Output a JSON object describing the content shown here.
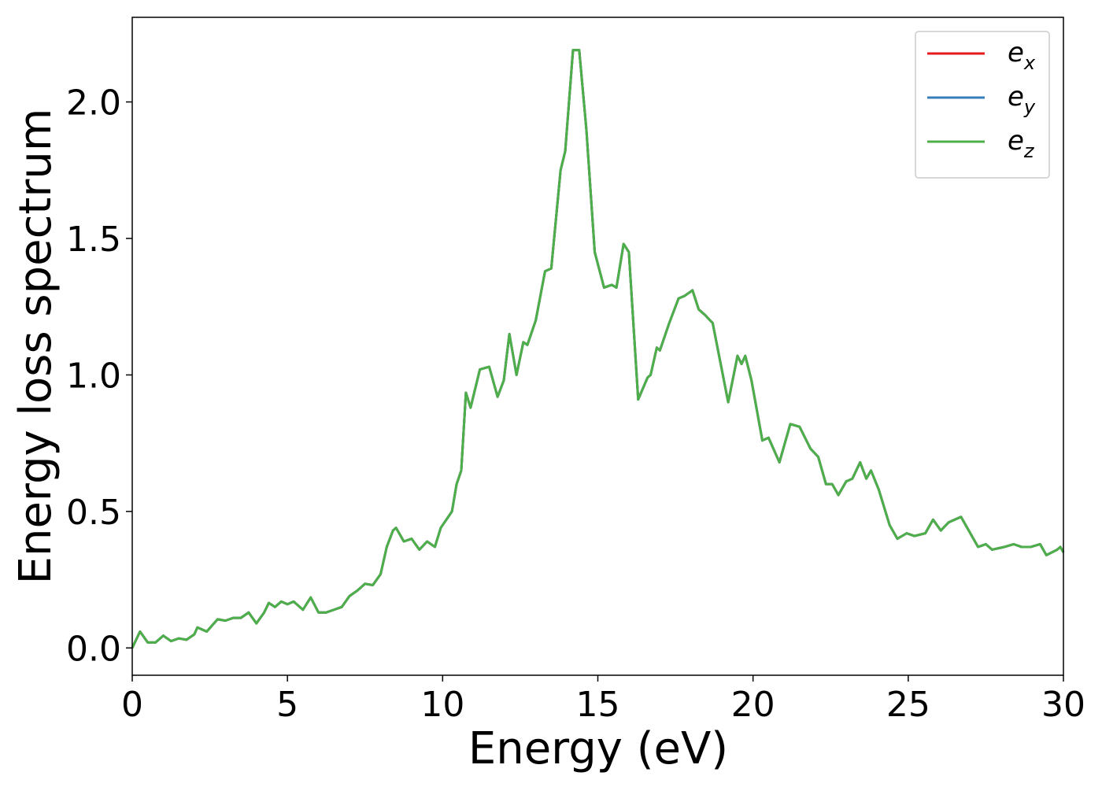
{
  "chart_data": {
    "type": "line",
    "xlabel": "Energy (eV)",
    "ylabel": "Energy loss spectrum",
    "xlim": [
      0,
      30
    ],
    "xticks": [
      0,
      5,
      10,
      15,
      20,
      25,
      30
    ],
    "ylim": [
      -0.1,
      2.31
    ],
    "yticks": [
      {
        "value": 0,
        "label": "0.0"
      },
      0.5,
      {
        "value": 1,
        "label": "1.0"
      },
      1.5,
      {
        "value": 2,
        "label": "2.0"
      }
    ],
    "legend": "upper right",
    "x": [
      0,
      0.25,
      0.5,
      0.75,
      1.0,
      1.25,
      1.5,
      1.75,
      2.0,
      2.1,
      2.4,
      2.75,
      3.0,
      3.25,
      3.5,
      3.75,
      4.0,
      4.25,
      4.4,
      4.6,
      4.8,
      5.0,
      5.2,
      5.5,
      5.75,
      6.0,
      6.25,
      6.5,
      6.75,
      7.0,
      7.25,
      7.5,
      7.75,
      8.0,
      8.2,
      8.4,
      8.5,
      8.75,
      9.0,
      9.25,
      9.5,
      9.75,
      9.94,
      10.3,
      10.45,
      10.6,
      10.75,
      10.9,
      11.2,
      11.5,
      11.77,
      11.97,
      12.15,
      12.38,
      12.6,
      12.73,
      13.0,
      13.3,
      13.5,
      13.8,
      13.95,
      14.2,
      14.4,
      14.63,
      14.9,
      15.2,
      15.45,
      15.6,
      15.83,
      16.0,
      16.3,
      16.6,
      16.7,
      16.9,
      17.0,
      17.3,
      17.6,
      17.8,
      18.05,
      18.25,
      18.45,
      18.7,
      19.2,
      19.5,
      19.63,
      19.75,
      19.95,
      20.3,
      20.5,
      20.85,
      21.2,
      21.5,
      21.85,
      22.1,
      22.35,
      22.55,
      22.75,
      23.0,
      23.2,
      23.45,
      23.65,
      23.8,
      24.05,
      24.4,
      24.65,
      24.95,
      25.2,
      25.55,
      25.8,
      26.05,
      26.3,
      26.7,
      26.95,
      27.25,
      27.5,
      27.7,
      28.1,
      28.4,
      28.65,
      28.95,
      29.25,
      29.45,
      29.8,
      29.9,
      30
    ],
    "series": [
      {
        "name": "e_x",
        "color": "#e41a1c",
        "values": [
          0.0,
          0.06,
          0.02,
          0.02,
          0.045,
          0.025,
          0.035,
          0.03,
          0.05,
          0.075,
          0.06,
          0.105,
          0.1,
          0.11,
          0.11,
          0.13,
          0.09,
          0.13,
          0.165,
          0.15,
          0.17,
          0.16,
          0.17,
          0.14,
          0.185,
          0.13,
          0.13,
          0.14,
          0.15,
          0.19,
          0.21,
          0.235,
          0.23,
          0.27,
          0.37,
          0.43,
          0.44,
          0.39,
          0.4,
          0.36,
          0.39,
          0.37,
          0.44,
          0.5,
          0.6,
          0.65,
          0.935,
          0.88,
          1.02,
          1.03,
          0.92,
          0.98,
          1.15,
          1.0,
          1.12,
          1.11,
          1.2,
          1.38,
          1.39,
          1.75,
          1.82,
          2.19,
          2.19,
          1.9,
          1.45,
          1.32,
          1.33,
          1.32,
          1.48,
          1.45,
          0.91,
          0.99,
          1.0,
          1.1,
          1.09,
          1.19,
          1.28,
          1.29,
          1.31,
          1.24,
          1.22,
          1.19,
          0.9,
          1.07,
          1.04,
          1.07,
          0.98,
          0.76,
          0.77,
          0.68,
          0.82,
          0.81,
          0.73,
          0.7,
          0.6,
          0.6,
          0.56,
          0.61,
          0.62,
          0.68,
          0.62,
          0.65,
          0.58,
          0.45,
          0.4,
          0.42,
          0.41,
          0.42,
          0.47,
          0.43,
          0.46,
          0.48,
          0.43,
          0.37,
          0.38,
          0.36,
          0.37,
          0.38,
          0.37,
          0.37,
          0.38,
          0.34,
          0.36,
          0.37,
          0.35
        ]
      },
      {
        "name": "e_y",
        "color": "#377eb8",
        "values": [
          0.0,
          0.06,
          0.02,
          0.02,
          0.045,
          0.025,
          0.035,
          0.03,
          0.05,
          0.075,
          0.06,
          0.105,
          0.1,
          0.11,
          0.11,
          0.13,
          0.09,
          0.13,
          0.165,
          0.15,
          0.17,
          0.16,
          0.17,
          0.14,
          0.185,
          0.13,
          0.13,
          0.14,
          0.15,
          0.19,
          0.21,
          0.235,
          0.23,
          0.27,
          0.37,
          0.43,
          0.44,
          0.39,
          0.4,
          0.36,
          0.39,
          0.37,
          0.44,
          0.5,
          0.6,
          0.65,
          0.935,
          0.88,
          1.02,
          1.03,
          0.92,
          0.98,
          1.15,
          1.0,
          1.12,
          1.11,
          1.2,
          1.38,
          1.39,
          1.75,
          1.82,
          2.19,
          2.19,
          1.9,
          1.45,
          1.32,
          1.33,
          1.32,
          1.48,
          1.45,
          0.91,
          0.99,
          1.0,
          1.1,
          1.09,
          1.19,
          1.28,
          1.29,
          1.31,
          1.24,
          1.22,
          1.19,
          0.9,
          1.07,
          1.04,
          1.07,
          0.98,
          0.76,
          0.77,
          0.68,
          0.82,
          0.81,
          0.73,
          0.7,
          0.6,
          0.6,
          0.56,
          0.61,
          0.62,
          0.68,
          0.62,
          0.65,
          0.58,
          0.45,
          0.4,
          0.42,
          0.41,
          0.42,
          0.47,
          0.43,
          0.46,
          0.48,
          0.43,
          0.37,
          0.38,
          0.36,
          0.37,
          0.38,
          0.37,
          0.37,
          0.38,
          0.34,
          0.36,
          0.37,
          0.35
        ]
      },
      {
        "name": "e_z",
        "color": "#4daf4a",
        "values": [
          0.0,
          0.06,
          0.02,
          0.02,
          0.045,
          0.025,
          0.035,
          0.03,
          0.05,
          0.075,
          0.06,
          0.105,
          0.1,
          0.11,
          0.11,
          0.13,
          0.09,
          0.13,
          0.165,
          0.15,
          0.17,
          0.16,
          0.17,
          0.14,
          0.185,
          0.13,
          0.13,
          0.14,
          0.15,
          0.19,
          0.21,
          0.235,
          0.23,
          0.27,
          0.37,
          0.43,
          0.44,
          0.39,
          0.4,
          0.36,
          0.39,
          0.37,
          0.44,
          0.5,
          0.6,
          0.65,
          0.935,
          0.88,
          1.02,
          1.03,
          0.92,
          0.98,
          1.15,
          1.0,
          1.12,
          1.11,
          1.2,
          1.38,
          1.39,
          1.75,
          1.82,
          2.19,
          2.19,
          1.9,
          1.45,
          1.32,
          1.33,
          1.32,
          1.48,
          1.45,
          0.91,
          0.99,
          1.0,
          1.1,
          1.09,
          1.19,
          1.28,
          1.29,
          1.31,
          1.24,
          1.22,
          1.19,
          0.9,
          1.07,
          1.04,
          1.07,
          0.98,
          0.76,
          0.77,
          0.68,
          0.82,
          0.81,
          0.73,
          0.7,
          0.6,
          0.6,
          0.56,
          0.61,
          0.62,
          0.68,
          0.62,
          0.65,
          0.58,
          0.45,
          0.4,
          0.42,
          0.41,
          0.42,
          0.47,
          0.43,
          0.46,
          0.48,
          0.43,
          0.37,
          0.38,
          0.36,
          0.37,
          0.38,
          0.37,
          0.37,
          0.38,
          0.34,
          0.36,
          0.37,
          0.35
        ]
      }
    ]
  }
}
